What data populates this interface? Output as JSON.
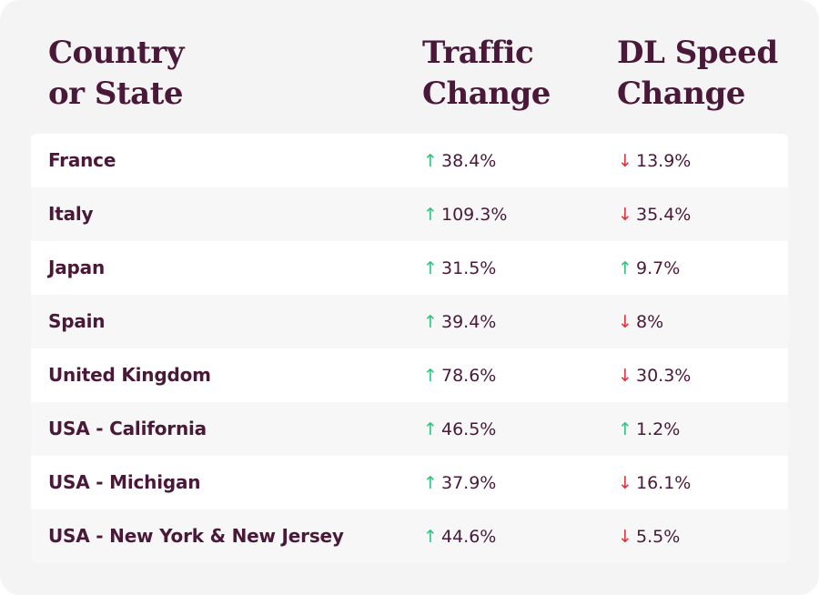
{
  "table": {
    "headers": {
      "country": "Country\nor State",
      "traffic": "Traffic\nChange",
      "speed": "DL Speed\nChange"
    },
    "rows": [
      {
        "country": "France",
        "traffic": {
          "dir": "up",
          "value": "38.4%"
        },
        "speed": {
          "dir": "down",
          "value": "13.9%"
        }
      },
      {
        "country": "Italy",
        "traffic": {
          "dir": "up",
          "value": "109.3%"
        },
        "speed": {
          "dir": "down",
          "value": "35.4%"
        }
      },
      {
        "country": "Japan",
        "traffic": {
          "dir": "up",
          "value": "31.5%"
        },
        "speed": {
          "dir": "up",
          "value": "9.7%"
        }
      },
      {
        "country": "Spain",
        "traffic": {
          "dir": "up",
          "value": "39.4%"
        },
        "speed": {
          "dir": "down",
          "value": "8%"
        }
      },
      {
        "country": "United Kingdom",
        "traffic": {
          "dir": "up",
          "value": "78.6%"
        },
        "speed": {
          "dir": "down",
          "value": "30.3%"
        }
      },
      {
        "country": "USA - California",
        "traffic": {
          "dir": "up",
          "value": "46.5%"
        },
        "speed": {
          "dir": "up",
          "value": "1.2%"
        }
      },
      {
        "country": "USA - Michigan",
        "traffic": {
          "dir": "up",
          "value": "37.9%"
        },
        "speed": {
          "dir": "down",
          "value": "16.1%"
        }
      },
      {
        "country": "USA - New York & New Jersey",
        "traffic": {
          "dir": "up",
          "value": "44.6%"
        },
        "speed": {
          "dir": "down",
          "value": "5.5%"
        }
      }
    ]
  },
  "colors": {
    "text": "#4a1838",
    "up": "#2ec27e",
    "down": "#e0313a",
    "background": "#f4f4f5"
  },
  "icons": {
    "up": "arrow-up-icon",
    "down": "arrow-down-icon"
  }
}
